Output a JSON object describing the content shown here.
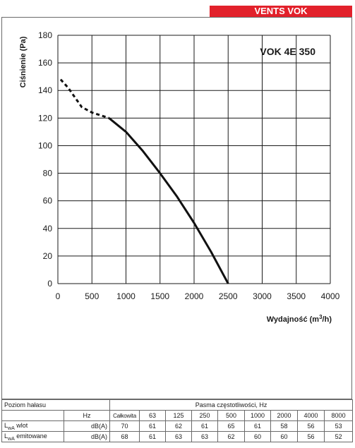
{
  "brand": "VENTS VOK",
  "chart_data": {
    "type": "line",
    "title": "VOK 4E 350",
    "xlabel": "Wydajność (m³/h)",
    "ylabel": "Ciśnienie (Pa)",
    "xlim": [
      0,
      4000
    ],
    "ylim": [
      0,
      180
    ],
    "x_ticks": [
      "0",
      "500",
      "1000",
      "1500",
      "2000",
      "2500",
      "3000",
      "3500",
      "4000"
    ],
    "y_ticks": [
      "0",
      "20",
      "40",
      "60",
      "80",
      "100",
      "120",
      "140",
      "160",
      "180"
    ],
    "grid": true,
    "series": [
      {
        "style": "dashed",
        "points": [
          [
            40,
            148
          ],
          [
            150,
            142
          ],
          [
            350,
            128
          ],
          [
            500,
            124
          ],
          [
            750,
            120
          ]
        ]
      },
      {
        "style": "solid",
        "points": [
          [
            750,
            120
          ],
          [
            1000,
            110
          ],
          [
            1250,
            96
          ],
          [
            1500,
            80
          ],
          [
            1750,
            63
          ],
          [
            2000,
            44
          ],
          [
            2250,
            23
          ],
          [
            2500,
            0
          ]
        ]
      }
    ]
  },
  "noise_table": {
    "header_label": "Poziom hałasu",
    "bands_title": "Pasma częstotliwości, Hz",
    "unit_col_header": "Hz",
    "total_label": "Całkowita",
    "frequencies": [
      "63",
      "125",
      "250",
      "500",
      "1000",
      "2000",
      "4000",
      "8000"
    ],
    "rows": [
      {
        "label_main": "L",
        "label_sub": "wA",
        "label_rest": " wlot",
        "unit": "dB(A)",
        "total": "70",
        "values": [
          "61",
          "62",
          "61",
          "65",
          "61",
          "58",
          "56",
          "53"
        ]
      },
      {
        "label_main": "L",
        "label_sub": "wA",
        "label_rest": " emitowane",
        "unit": "dB(A)",
        "total": "68",
        "values": [
          "61",
          "63",
          "63",
          "62",
          "60",
          "60",
          "56",
          "52"
        ]
      }
    ]
  }
}
